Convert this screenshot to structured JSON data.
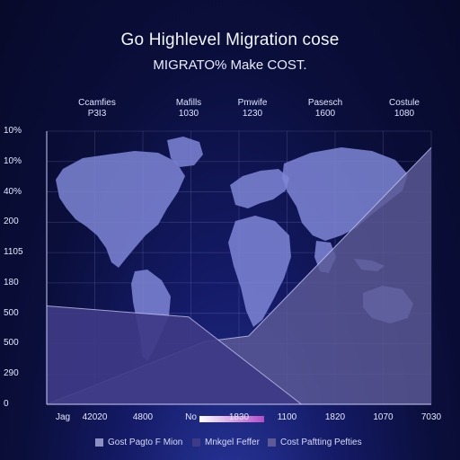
{
  "chart_data": {
    "type": "area",
    "title": "Go Highlevel Migration cose",
    "subtitle": "MIGRATO% Make COST.",
    "column_headers": [
      {
        "name": "Ccamfies",
        "value": "P3I3"
      },
      {
        "name": "Mafills",
        "value": "1030"
      },
      {
        "name": "Pmwife",
        "value": "1230"
      },
      {
        "name": "Pasesch",
        "value": "1600"
      },
      {
        "name": "Costule",
        "value": "1080"
      }
    ],
    "y_tick_labels": [
      "10%",
      "10%",
      "40%",
      "200",
      "1105",
      "180",
      "500",
      "500",
      "290",
      "0"
    ],
    "x_tick_labels": [
      "Jag",
      "42020",
      "4800",
      "No",
      "1830",
      "1100",
      "1820",
      "1070",
      "7030"
    ],
    "ylim": [
      0,
      100
    ],
    "series": [
      {
        "name": "Cost Paftting Pefties",
        "color": "#5d5a96",
        "x": [
          0,
          3.3,
          4.2,
          8
        ],
        "y": [
          0,
          23,
          25,
          94
        ]
      },
      {
        "name": "Mnkgel Feffer",
        "color": "#3f3a86",
        "x": [
          0,
          2.95,
          5.3
        ],
        "y": [
          36,
          32,
          0
        ]
      },
      {
        "name": "Gost Pagto F Mion",
        "color": "#8c90c2",
        "x": [
          0,
          8
        ],
        "y": [
          0,
          0
        ]
      }
    ],
    "grid": true,
    "legend_position": "bottom"
  },
  "colors": {
    "map_land": "#7f86d6",
    "grid_line": "#8a93d8",
    "axis_line": "#c9cef5",
    "highlight_bar_start": "#ffffff",
    "highlight_bar_end": "#b14ec7"
  }
}
